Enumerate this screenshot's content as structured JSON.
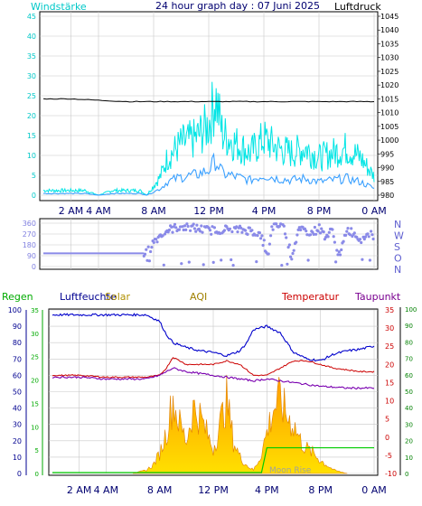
{
  "header": {
    "left_label": "Windstärke",
    "title": "24 hour graph day : 07 Juni 2025",
    "right_label": "Luftdruck"
  },
  "panel3_labels": {
    "regen": "Regen",
    "luftfeuchte": "Luftfeuchte",
    "solar": "Solar",
    "aqi": "AQI",
    "temperatur": "Temperatur",
    "taupunkt": "Taupunkt",
    "moon": "Moon Rise"
  },
  "colors": {
    "wind_gust": "#00e5e5",
    "wind_avg": "#3aa0ff",
    "pressure": "#000000",
    "direction": "#8a8ae8",
    "humidity": "#0000cc",
    "temperature": "#cc0000",
    "dewpoint": "#7a00b0",
    "solar": "#ffd000",
    "rain": "#00cc00"
  },
  "chart_data": [
    {
      "type": "line",
      "x_ticks": [
        "2 AM",
        "4 AM",
        "8 AM",
        "12 PM",
        "4 PM",
        "8 PM",
        "0 AM"
      ],
      "ylim_left": [
        0,
        45
      ],
      "yticks_left": [
        "45",
        "40",
        "35",
        "30",
        "25",
        "20",
        "15",
        "10",
        "5",
        "0"
      ],
      "ylim_right": [
        980,
        1045
      ],
      "yticks_right": [
        "1045",
        "1040",
        "1035",
        "1030",
        "1025",
        "1020",
        "1015",
        "1010",
        "1005",
        "1000",
        "995",
        "990",
        "985",
        "980"
      ],
      "series": [
        {
          "name": "Windstärke",
          "x": [
            0,
            1,
            2,
            3,
            4,
            5,
            6,
            7,
            7.5,
            8,
            8.5,
            9,
            10,
            11,
            12,
            12.5,
            13,
            14,
            15,
            16,
            17,
            18,
            19,
            20,
            21,
            22,
            23,
            23.5,
            24
          ],
          "values": [
            1,
            1,
            1,
            1,
            0,
            1,
            1,
            1,
            0,
            2,
            4,
            8,
            11,
            12,
            15,
            21,
            13,
            11,
            9,
            12,
            10,
            9,
            10,
            8,
            9,
            10,
            8,
            6,
            4
          ]
        },
        {
          "name": "Luftdruck",
          "x": [
            0,
            2,
            4,
            6,
            8,
            10,
            12,
            14,
            16,
            18,
            20,
            22,
            24
          ],
          "values": [
            1015,
            1015,
            1014.5,
            1014,
            1014,
            1014,
            1014,
            1014,
            1014,
            1014,
            1014,
            1014,
            1014
          ]
        }
      ]
    },
    {
      "type": "scatter",
      "x_ticks": [
        "2 AM",
        "4 AM",
        "8 AM",
        "12 PM",
        "4 PM",
        "8 PM",
        "0 AM"
      ],
      "ylim": [
        0,
        360
      ],
      "yticks_left": [
        "360",
        "270",
        "180",
        "90",
        "0"
      ],
      "yticks_right": [
        "N",
        "W",
        "S",
        "O",
        "N"
      ],
      "x": [
        0,
        2,
        4,
        6,
        7.5,
        7.8,
        8,
        8.5,
        9,
        9.5,
        10,
        11,
        12,
        13,
        14,
        15,
        15.5,
        16,
        16.3,
        16.6,
        17,
        17.5,
        18,
        18.5,
        19,
        19.5,
        20,
        20.5,
        21,
        21.5,
        22,
        22.5,
        23,
        23.5
      ],
      "values": [
        110,
        110,
        110,
        110,
        110,
        160,
        210,
        260,
        300,
        320,
        330,
        320,
        300,
        310,
        305,
        300,
        280,
        200,
        60,
        330,
        340,
        320,
        80,
        290,
        300,
        280,
        320,
        250,
        300,
        70,
        310,
        280,
        230,
        260
      ]
    },
    {
      "type": "line",
      "x_ticks": [
        "2 AM",
        "4 AM",
        "8 AM",
        "12 PM",
        "4 PM",
        "8 PM",
        "0 AM"
      ],
      "yticks_left": [
        "100",
        "90",
        "80",
        "70",
        "60",
        "50",
        "40",
        "30",
        "20",
        "10",
        "0"
      ],
      "yticks_left2": [
        "35",
        "30",
        "25",
        "20",
        "15",
        "10",
        "5",
        "0"
      ],
      "yticks_right": [
        "35",
        "30",
        "25",
        "20",
        "15",
        "10",
        "5",
        "0",
        "-5",
        "-10"
      ],
      "yticks_right2": [
        "100",
        "90",
        "80",
        "70",
        "60",
        "50",
        "40",
        "30",
        "20",
        "10",
        "0"
      ],
      "series": [
        {
          "name": "Luftfeuchte",
          "x": [
            0,
            2,
            4,
            6,
            7,
            8,
            8.5,
            9,
            10,
            11,
            12,
            13,
            14,
            14.5,
            15,
            16,
            17,
            17.5,
            18,
            19,
            20,
            21,
            22,
            23,
            24
          ],
          "values": [
            97,
            97,
            97,
            97,
            97,
            93,
            85,
            80,
            77,
            75,
            74,
            72,
            75,
            80,
            88,
            90,
            86,
            80,
            74,
            70,
            69,
            73,
            75,
            76,
            78
          ]
        },
        {
          "name": "Temperatur",
          "x": [
            0,
            2,
            4,
            6,
            7,
            8,
            8.5,
            9,
            10,
            11,
            12,
            13,
            14,
            15,
            16,
            17,
            18,
            19,
            20,
            21,
            22,
            23,
            24
          ],
          "values": [
            17,
            17,
            16.5,
            16.5,
            16.5,
            17,
            19,
            22,
            20,
            20,
            20,
            21,
            20,
            17,
            17,
            19,
            21,
            21,
            20,
            19,
            18.5,
            18,
            18
          ]
        },
        {
          "name": "Taupunkt",
          "x": [
            0,
            2,
            4,
            6,
            7,
            8,
            8.5,
            9,
            10,
            12,
            14,
            15,
            16,
            18,
            20,
            22,
            24
          ],
          "values": [
            16.5,
            16.5,
            16,
            16,
            16,
            17,
            18,
            19,
            18,
            17,
            16,
            15.5,
            16,
            15,
            14,
            13.5,
            13.5
          ]
        },
        {
          "name": "Solar",
          "x": [
            6,
            7,
            7.5,
            8,
            8.5,
            9,
            9.5,
            10,
            10.5,
            11,
            11.5,
            12,
            12.5,
            13,
            13.5,
            14,
            14.5,
            15,
            15.5,
            16,
            16.5,
            17,
            17.5,
            18,
            18.5,
            19,
            19.5,
            20,
            20.5,
            21,
            22
          ],
          "values": [
            0,
            2,
            5,
            12,
            25,
            45,
            30,
            20,
            40,
            35,
            25,
            15,
            30,
            45,
            20,
            10,
            5,
            2,
            10,
            25,
            40,
            45,
            35,
            30,
            20,
            15,
            12,
            8,
            5,
            2,
            0
          ]
        },
        {
          "name": "Regen",
          "x": [
            0,
            15.5,
            16,
            24
          ],
          "values": [
            0,
            0,
            5.5,
            5.5
          ]
        }
      ]
    }
  ]
}
